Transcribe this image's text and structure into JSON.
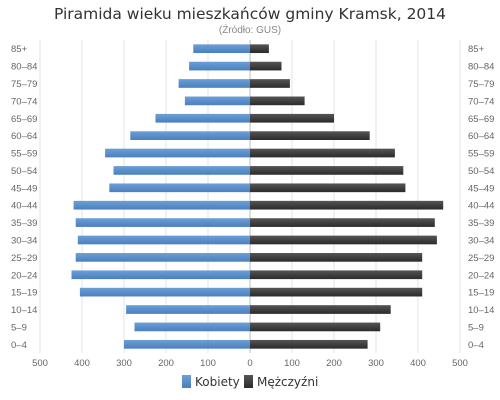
{
  "chart_data": {
    "type": "bar",
    "title": "Piramida wieku mieszkańców gminy Kramsk, 2014",
    "subtitle": "(Źródło: GUS)",
    "categories": [
      "85+",
      "80–84",
      "75–79",
      "70–74",
      "65–69",
      "60–64",
      "55–59",
      "50–54",
      "45–49",
      "40–44",
      "35–39",
      "30–34",
      "25–29",
      "20–24",
      "15–19",
      "10–14",
      "5–9",
      "0–4"
    ],
    "series": [
      {
        "name": "Kobiety",
        "color": "#4a7fbe",
        "values": [
          135,
          145,
          170,
          155,
          225,
          285,
          345,
          325,
          335,
          420,
          415,
          410,
          415,
          425,
          405,
          295,
          275,
          300
        ]
      },
      {
        "name": "Mężczyźni",
        "color": "#2b2b2b",
        "values": [
          45,
          75,
          95,
          130,
          200,
          285,
          345,
          365,
          370,
          460,
          440,
          445,
          410,
          410,
          410,
          335,
          310,
          280
        ]
      }
    ],
    "x_ticks": [
      "500",
      "400",
      "300",
      "200",
      "100",
      "0",
      "100",
      "200",
      "300",
      "400",
      "500"
    ],
    "xlim": [
      -500,
      500
    ],
    "grid": true,
    "legend_position": "bottom"
  }
}
